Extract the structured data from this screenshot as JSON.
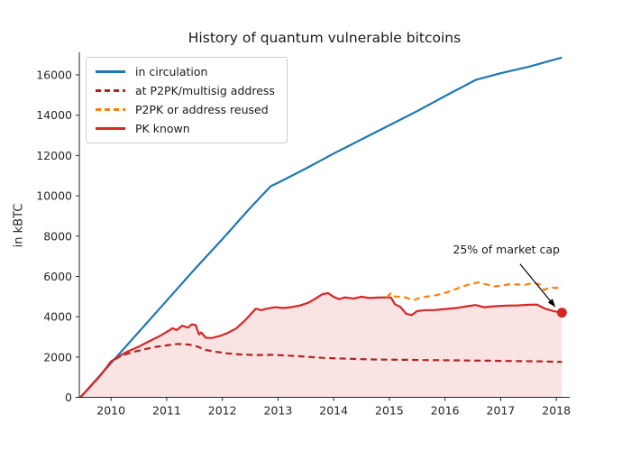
{
  "title": "History of quantum vulnerable bitcoins",
  "axes": {
    "ylabel": "in kBTC",
    "xticks": [
      2010,
      2011,
      2012,
      2013,
      2014,
      2015,
      2016,
      2017,
      2018
    ],
    "yticks": [
      0,
      2000,
      4000,
      6000,
      8000,
      10000,
      12000,
      14000,
      16000
    ]
  },
  "legend": {
    "items": [
      {
        "label": "in circulation",
        "color": "#1f77b4",
        "dash": false
      },
      {
        "label": "at P2PK/multisig address",
        "color": "#b22222",
        "dash": true
      },
      {
        "label": "P2PK or address reused",
        "color": "#ff7f0e",
        "dash": true
      },
      {
        "label": "PK known",
        "color": "#d62728",
        "dash": false
      }
    ]
  },
  "annotation": {
    "text": "25% of market cap"
  },
  "colors": {
    "blue": "#1f77b4",
    "dark_red": "#b22222",
    "orange": "#ff7f0e",
    "red": "#d62728",
    "fill_pink": "rgba(214,39,40,0.13)",
    "axis": "#262626"
  },
  "chart_data": {
    "type": "line",
    "title": "History of quantum vulnerable bitcoins",
    "xlabel": "",
    "ylabel": "in kBTC",
    "xlim": [
      2009.43,
      2018.24
    ],
    "ylim": [
      0,
      17120
    ],
    "grid": false,
    "legend_position": "upper left",
    "xticks": [
      2010,
      2011,
      2012,
      2013,
      2014,
      2015,
      2016,
      2017,
      2018
    ],
    "yticks": [
      0,
      2000,
      4000,
      6000,
      8000,
      10000,
      12000,
      14000,
      16000
    ],
    "series": [
      {
        "name": "in circulation",
        "color": "#1f77b4",
        "style": "solid",
        "zorder": 1,
        "x": [
          2009.45,
          2010.0,
          2010.5,
          2011.0,
          2011.5,
          2012.0,
          2012.5,
          2012.87,
          2013.0,
          2013.5,
          2014.0,
          2014.5,
          2015.0,
          2015.5,
          2016.0,
          2016.55,
          2017.0,
          2017.5,
          2018.1
        ],
        "y": [
          0,
          1700,
          3250,
          4800,
          6350,
          7850,
          9400,
          10480,
          10650,
          11350,
          12100,
          12800,
          13500,
          14200,
          14950,
          15750,
          16080,
          16400,
          16860
        ]
      },
      {
        "name": "at P2PK/multisig address",
        "color": "#b22222",
        "style": "dashed",
        "zorder": 2,
        "x": [
          2009.45,
          2009.8,
          2010.0,
          2010.2,
          2010.4,
          2010.6,
          2010.8,
          2011.0,
          2011.2,
          2011.4,
          2011.55,
          2011.7,
          2011.9,
          2012.1,
          2012.3,
          2012.6,
          2012.9,
          2013.2,
          2013.5,
          2013.8,
          2014.1,
          2014.4,
          2014.7,
          2015.0,
          2015.3,
          2015.6,
          2015.9,
          2016.2,
          2016.5,
          2016.8,
          2017.1,
          2017.4,
          2017.7,
          2018.0,
          2018.1
        ],
        "y": [
          0,
          1050,
          1780,
          2080,
          2250,
          2380,
          2500,
          2580,
          2650,
          2620,
          2520,
          2350,
          2250,
          2180,
          2130,
          2100,
          2110,
          2070,
          2020,
          1960,
          1930,
          1900,
          1880,
          1870,
          1860,
          1850,
          1845,
          1835,
          1825,
          1815,
          1805,
          1795,
          1785,
          1765,
          1760
        ]
      },
      {
        "name": "PK known",
        "color": "#d62728",
        "style": "solid",
        "zorder": 3,
        "fill_to_zero": true,
        "fill_color": "rgba(214,39,40,0.13)",
        "x": [
          2009.45,
          2009.8,
          2010.0,
          2010.15,
          2010.3,
          2010.5,
          2010.7,
          2010.9,
          2011.05,
          2011.1,
          2011.18,
          2011.28,
          2011.38,
          2011.45,
          2011.52,
          2011.58,
          2011.62,
          2011.7,
          2011.8,
          2011.95,
          2012.1,
          2012.25,
          2012.4,
          2012.5,
          2012.6,
          2012.7,
          2012.8,
          2012.95,
          2013.1,
          2013.25,
          2013.4,
          2013.55,
          2013.7,
          2013.8,
          2013.9,
          2014.0,
          2014.1,
          2014.2,
          2014.35,
          2014.5,
          2014.65,
          2014.8,
          2014.95,
          2015.03,
          2015.1,
          2015.2,
          2015.3,
          2015.4,
          2015.5,
          2015.65,
          2015.8,
          2016.0,
          2016.2,
          2016.4,
          2016.55,
          2016.7,
          2016.9,
          2017.1,
          2017.3,
          2017.5,
          2017.65,
          2017.8,
          2017.95,
          2018.1
        ],
        "y": [
          0,
          1050,
          1780,
          2050,
          2280,
          2520,
          2800,
          3080,
          3330,
          3430,
          3340,
          3560,
          3460,
          3620,
          3580,
          3120,
          3220,
          2960,
          2940,
          3040,
          3200,
          3420,
          3800,
          4100,
          4400,
          4330,
          4400,
          4470,
          4430,
          4480,
          4560,
          4700,
          4950,
          5120,
          5170,
          4980,
          4870,
          4960,
          4900,
          4990,
          4930,
          4950,
          4960,
          4950,
          4620,
          4480,
          4150,
          4080,
          4280,
          4330,
          4330,
          4380,
          4430,
          4520,
          4580,
          4470,
          4520,
          4550,
          4560,
          4590,
          4600,
          4400,
          4280,
          4200
        ]
      },
      {
        "name": "P2PK or address reused",
        "color": "#ff7f0e",
        "style": "dashed",
        "zorder": 4,
        "x": [
          2014.95,
          2015.03,
          2015.1,
          2015.2,
          2015.3,
          2015.42,
          2015.55,
          2015.7,
          2015.85,
          2016.0,
          2016.15,
          2016.3,
          2016.45,
          2016.6,
          2016.75,
          2016.9,
          2017.0,
          2017.15,
          2017.3,
          2017.45,
          2017.6,
          2017.7,
          2017.78,
          2017.9,
          2018.0,
          2018.1
        ],
        "y": [
          4960,
          5180,
          5000,
          4990,
          4950,
          4810,
          4940,
          5010,
          5070,
          5180,
          5330,
          5480,
          5620,
          5700,
          5600,
          5500,
          5540,
          5610,
          5600,
          5590,
          5690,
          5600,
          5330,
          5460,
          5420,
          5560
        ]
      }
    ],
    "annotation": {
      "text": "25% of market cap",
      "x": 2018.1,
      "y": 4200,
      "marker": "dot",
      "marker_color": "#d62728"
    }
  }
}
